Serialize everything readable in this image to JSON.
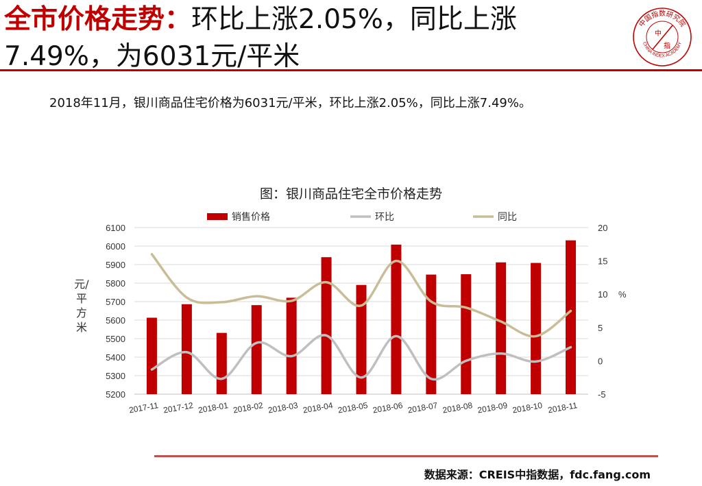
{
  "header": {
    "title_highlight": "全市价格走势：",
    "title_rest": "环比上涨2.05%，同比上涨7.49%，为6031元/平米"
  },
  "logo": {
    "top_text": "中国指数研究院",
    "bottom_text": "CHINA INDEX ACADEMY",
    "center_left": "中",
    "center_right": "指",
    "icon": "seal-logo-icon",
    "color": "#c00000"
  },
  "summary": "2018年11月，银川商品住宅价格为6031元/平米，环比上涨2.05%，同比上涨7.49%。",
  "source": "数据来源：CREIS中指数据，fdc.fang.com",
  "chart_data": {
    "type": "bar",
    "title": "图：银川商品住宅全市价格走势",
    "categories": [
      "2017-11",
      "2017-12",
      "2018-01",
      "2018-02",
      "2018-03",
      "2018-04",
      "2018-05",
      "2018-06",
      "2018-07",
      "2018-08",
      "2018-09",
      "2018-10",
      "2018-11"
    ],
    "ylabel": "元/平方米",
    "y2label": "%",
    "ylim": [
      5200,
      6100
    ],
    "y2lim": [
      -5,
      20
    ],
    "yticks": [
      5200,
      5300,
      5400,
      5500,
      5600,
      5700,
      5800,
      5900,
      6000,
      6100
    ],
    "y2ticks": [
      -5,
      0,
      5,
      10,
      15,
      20
    ],
    "legend_position": "top",
    "grid": true,
    "series": [
      {
        "name": "销售价格",
        "kind": "bar",
        "axis": "left",
        "color": "#c00000",
        "values": [
          5613,
          5686,
          5531,
          5681,
          5721,
          5940,
          5790,
          6008,
          5846,
          5848,
          5912,
          5909,
          6031
        ]
      },
      {
        "name": "环比",
        "kind": "line",
        "axis": "right",
        "color": "#bfbfbf",
        "values": [
          -1.3,
          1.3,
          -2.7,
          2.7,
          0.7,
          3.8,
          -2.5,
          3.7,
          -2.7,
          0.0,
          1.1,
          -0.1,
          2.05
        ]
      },
      {
        "name": "同比",
        "kind": "line",
        "axis": "right",
        "color": "#c9bd98",
        "values": [
          16.0,
          9.5,
          8.8,
          9.7,
          9.0,
          11.8,
          8.3,
          15.0,
          8.9,
          8.0,
          5.9,
          3.7,
          7.49
        ]
      }
    ]
  }
}
